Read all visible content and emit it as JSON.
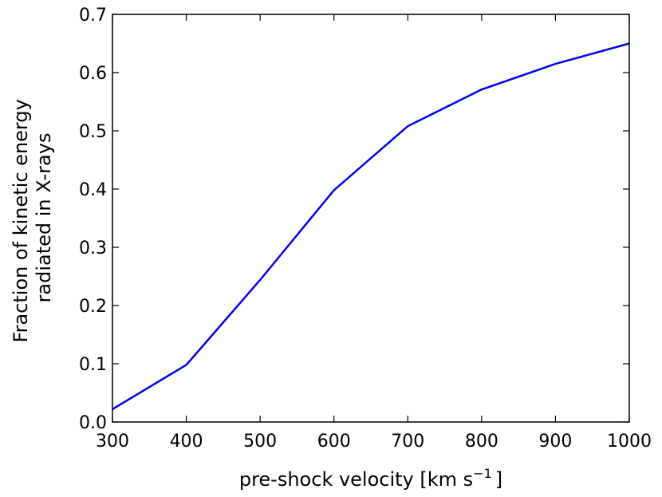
{
  "chart_data": {
    "type": "line",
    "title": "",
    "xlabel": "pre-shock velocity [km s",
    "xlabel_sup": "−1",
    "xlabel_end": "]",
    "ylabel_line1": "Fraction of kinetic energy",
    "ylabel_line2": "radiated in X-rays",
    "xlim": [
      300,
      1000
    ],
    "ylim": [
      0.0,
      0.7
    ],
    "x_ticks": [
      "300",
      "400",
      "500",
      "600",
      "700",
      "800",
      "900",
      "1000"
    ],
    "y_ticks": [
      "0.0",
      "0.1",
      "0.2",
      "0.3",
      "0.4",
      "0.5",
      "0.6",
      "0.7"
    ],
    "grid": false,
    "series": [
      {
        "color": "#0000ee",
        "x": [
          300,
          400,
          500,
          600,
          700,
          800,
          900,
          1000
        ],
        "y": [
          0.022,
          0.098,
          0.244,
          0.398,
          0.508,
          0.571,
          0.615,
          0.65
        ]
      }
    ]
  }
}
